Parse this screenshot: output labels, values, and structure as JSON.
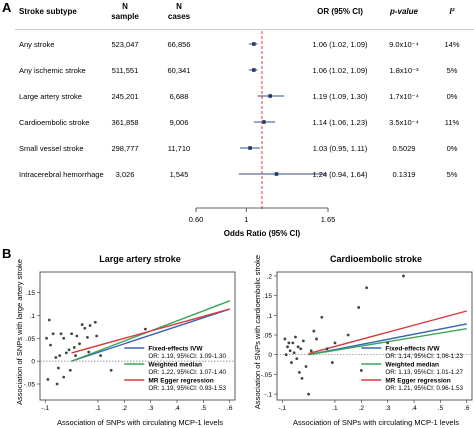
{
  "panel_a": {
    "label": "A",
    "headers": {
      "subtype": "Stroke subtype",
      "sample_n": "N",
      "sample_word": "sample",
      "cases_n": "N",
      "cases_word": "cases",
      "or": "OR (95% CI)",
      "p": "p-value",
      "i2": "I²"
    },
    "x_ticks": [
      "0.60",
      "1",
      "1.65"
    ],
    "xlabel": "Odds Ratio (95% CI)"
  },
  "panel_b": {
    "label": "B",
    "titles": [
      "Large artery stroke",
      "Cardioembolic stroke"
    ],
    "ylabels": [
      "Association of SNPs with large artery stroke",
      "Association of SNPs with cardioembolic stroke"
    ],
    "xlabels": [
      "Association of SNPs with circulating MCP-1 levels",
      "Association of SNPs with circulating MCP-1 levels"
    ],
    "legend_items": [
      "Fixed-effects IVW",
      "Weighted median",
      "MR Egger regression"
    ],
    "colors": {
      "ivw": "#3a63b0",
      "median": "#3aa65a",
      "egger": "#d8383a"
    }
  },
  "chart_data": [
    {
      "type": "table",
      "rows": [
        {
          "subtype": "Any stroke",
          "sample": "523,047",
          "cases": "66,856",
          "or": 1.06,
          "lo": 1.02,
          "hi": 1.09,
          "or_text": "1.06 (1.02, 1.09)",
          "p_text": "9.0x10⁻⁴",
          "i2": "14%"
        },
        {
          "subtype": "Any ischemic stroke",
          "sample": "511,551",
          "cases": "60,341",
          "or": 1.06,
          "lo": 1.02,
          "hi": 1.09,
          "or_text": "1.06 (1.02, 1.09)",
          "p_text": "1.8x10⁻³",
          "i2": "5%"
        },
        {
          "subtype": "Large artery stroke",
          "sample": "245,201",
          "cases": "6,688",
          "or": 1.19,
          "lo": 1.09,
          "hi": 1.3,
          "or_text": "1.19 (1.09, 1.30)",
          "p_text": "1.7x10⁻⁴",
          "i2": "0%"
        },
        {
          "subtype": "Cardioembolic stroke",
          "sample": "361,858",
          "cases": "9,006",
          "or": 1.14,
          "lo": 1.06,
          "hi": 1.23,
          "or_text": "1.14 (1.06, 1.23)",
          "p_text": "3.5x10⁻⁴",
          "i2": "11%"
        },
        {
          "subtype": "Small vessel stroke",
          "sample": "298,777",
          "cases": "11,710",
          "or": 1.03,
          "lo": 0.95,
          "hi": 1.11,
          "or_text": "1.03 (0.95, 1.11)",
          "p_text": "0.5029",
          "i2": "0%"
        },
        {
          "subtype": "Intracerebral hemorrhage",
          "sample": "3,026",
          "cases": "1,545",
          "or": 1.24,
          "lo": 0.94,
          "hi": 1.64,
          "or_text": "1.24 (0.94, 1.64)",
          "p_text": "0.1319",
          "i2": "5%"
        }
      ],
      "xlim": [
        0.6,
        1.65
      ],
      "ref_line": 1
    },
    {
      "type": "scatter",
      "title": "Large artery stroke",
      "xlabel": "Association of SNPs with circulating MCP-1 levels",
      "ylabel": "Association of SNPs with large artery stroke",
      "xlim": [
        -0.12,
        0.62
      ],
      "ylim": [
        -0.085,
        0.195
      ],
      "x_ticks": [
        "-.1",
        ".1",
        ".2",
        ".3",
        ".4",
        ".5",
        ".6"
      ],
      "y_ticks": [
        "-.05",
        "0",
        ".05",
        ".1",
        ".15"
      ],
      "x_tick_values": [
        -0.1,
        0.1,
        0.2,
        0.3,
        0.4,
        0.5,
        0.6
      ],
      "y_tick_values": [
        -0.05,
        0,
        0.05,
        0.1,
        0.15
      ],
      "points": [
        [
          -0.095,
          0.05
        ],
        [
          -0.09,
          -0.04
        ],
        [
          -0.085,
          0.09
        ],
        [
          -0.08,
          0.035
        ],
        [
          -0.07,
          0.06
        ],
        [
          -0.06,
          0.008
        ],
        [
          -0.055,
          -0.05
        ],
        [
          -0.05,
          -0.015
        ],
        [
          -0.045,
          0.012
        ],
        [
          -0.04,
          0.06
        ],
        [
          -0.03,
          0.05
        ],
        [
          -0.03,
          -0.035
        ],
        [
          -0.02,
          0.018
        ],
        [
          -0.01,
          0.025
        ],
        [
          -0.005,
          -0.02
        ],
        [
          0.0,
          0.06
        ],
        [
          0.01,
          0.03
        ],
        [
          0.015,
          0.012
        ],
        [
          0.02,
          0.055
        ],
        [
          0.03,
          0.038
        ],
        [
          0.04,
          0.08
        ],
        [
          0.05,
          0.072
        ],
        [
          0.06,
          0.052
        ],
        [
          0.065,
          0.02
        ],
        [
          0.07,
          0.078
        ],
        [
          0.09,
          0.085
        ],
        [
          0.095,
          0.055
        ],
        [
          0.11,
          0.012
        ],
        [
          0.15,
          -0.02
        ],
        [
          0.28,
          0.07
        ]
      ],
      "lines": [
        {
          "name": "Fixed-effects IVW",
          "slope": 0.19,
          "intercept": 0.0
        },
        {
          "name": "Weighted median",
          "slope": 0.22,
          "intercept": 0.0
        },
        {
          "name": "MR Egger regression",
          "slope": 0.16,
          "intercept": 0.018
        }
      ],
      "legend_details": [
        "OR: 1.19, 95%CI: 1.09-1.30",
        "OR: 1.22, 95%CI: 1.07-1.40",
        "OR: 1.19, 95%CI: 0.93-1.53"
      ]
    },
    {
      "type": "scatter",
      "title": "Cardioembolic stroke",
      "xlabel": "Association of SNPs with circulating MCP-1 levels",
      "ylabel": "Association of SNPs with cardioembolic stroke",
      "xlim": [
        -0.12,
        0.62
      ],
      "ylim": [
        -0.115,
        0.21
      ],
      "x_ticks": [
        "-.1",
        ".1",
        ".2",
        ".3",
        ".4",
        ".5",
        ".6"
      ],
      "y_ticks": [
        "-.1",
        "-.05",
        "0",
        ".05",
        ".1",
        ".15",
        ".2"
      ],
      "x_tick_values": [
        -0.1,
        0.1,
        0.2,
        0.3,
        0.4,
        0.5,
        0.6
      ],
      "y_tick_values": [
        -0.1,
        -0.05,
        0,
        0.05,
        0.1,
        0.15,
        0.2
      ],
      "points": [
        [
          -0.09,
          0.04
        ],
        [
          -0.085,
          0.0
        ],
        [
          -0.08,
          0.02
        ],
        [
          -0.075,
          0.03
        ],
        [
          -0.07,
          0.01
        ],
        [
          -0.065,
          -0.02
        ],
        [
          -0.06,
          0.03
        ],
        [
          -0.055,
          0.005
        ],
        [
          -0.05,
          0.045
        ],
        [
          -0.045,
          -0.01
        ],
        [
          -0.04,
          0.02
        ],
        [
          -0.035,
          -0.045
        ],
        [
          -0.03,
          0.015
        ],
        [
          -0.025,
          -0.06
        ],
        [
          -0.02,
          0.035
        ],
        [
          -0.01,
          -0.03
        ],
        [
          0.0,
          -0.1
        ],
        [
          0.01,
          0.01
        ],
        [
          0.02,
          0.06
        ],
        [
          0.03,
          0.04
        ],
        [
          0.05,
          0.095
        ],
        [
          0.07,
          0.015
        ],
        [
          0.09,
          -0.02
        ],
        [
          0.1,
          0.03
        ],
        [
          0.15,
          0.05
        ],
        [
          0.19,
          0.12
        ],
        [
          0.2,
          -0.04
        ],
        [
          0.22,
          0.17
        ],
        [
          0.3,
          0.03
        ],
        [
          0.36,
          0.2
        ]
      ],
      "lines": [
        {
          "name": "Fixed-effects IVW",
          "slope": 0.13,
          "intercept": 0.0
        },
        {
          "name": "Weighted median",
          "slope": 0.11,
          "intercept": 0.0
        },
        {
          "name": "MR Egger regression",
          "slope": 0.18,
          "intercept": 0.003
        }
      ],
      "legend_details": [
        "OR: 1.14, 95%CI: 1.06-1.23",
        "OR: 1.13, 95%CI: 1.01-1.27",
        "OR: 1.21, 95%CI: 0.96-1.53"
      ]
    }
  ]
}
